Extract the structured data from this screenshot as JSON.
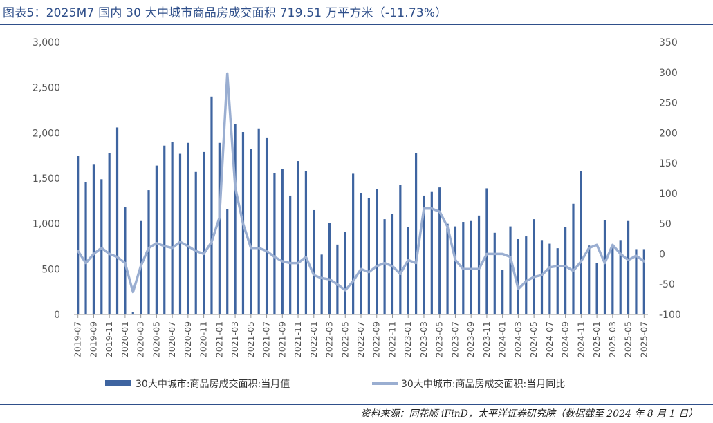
{
  "header": {
    "title": "图表5：2025M7 国内 30 大中城市商品房成交面积 719.51 万平方米（-11.73%）"
  },
  "footer": {
    "source": "资料来源：同花顺 iFinD，太平洋证券研究院（数据截至 2024 年 8 月 1 日）"
  },
  "colors": {
    "bar": "#3e64a0",
    "line": "#9aaed1",
    "rule": "#2f4f8a"
  },
  "chart_data": {
    "type": "bar",
    "categories": [
      "2019-07",
      "2019-08",
      "2019-09",
      "2019-10",
      "2019-11",
      "2019-12",
      "2020-01",
      "2020-02",
      "2020-03",
      "2020-04",
      "2020-05",
      "2020-06",
      "2020-07",
      "2020-08",
      "2020-09",
      "2020-10",
      "2020-11",
      "2020-12",
      "2021-01",
      "2021-02",
      "2021-03",
      "2021-04",
      "2021-05",
      "2021-06",
      "2021-07",
      "2021-08",
      "2021-09",
      "2021-10",
      "2021-11",
      "2021-12",
      "2022-01",
      "2022-02",
      "2022-03",
      "2022-04",
      "2022-05",
      "2022-06",
      "2022-07",
      "2022-08",
      "2022-09",
      "2022-10",
      "2022-11",
      "2022-12",
      "2023-01",
      "2023-02",
      "2023-03",
      "2023-04",
      "2023-05",
      "2023-06",
      "2023-07",
      "2023-08",
      "2023-09",
      "2023-10",
      "2023-11",
      "2023-12",
      "2024-01",
      "2024-02",
      "2024-03",
      "2024-04",
      "2024-05",
      "2024-06",
      "2024-07",
      "2024-08",
      "2024-09",
      "2024-10",
      "2024-11",
      "2024-12",
      "2025-01",
      "2025-02",
      "2025-03",
      "2025-04",
      "2025-05",
      "2025-06",
      "2025-07"
    ],
    "x_tick_labels": [
      "2019-07",
      "2019-09",
      "2019-11",
      "2020-01",
      "2020-03",
      "2020-05",
      "2020-07",
      "2020-09",
      "2020-11",
      "2021-01",
      "2021-03",
      "2021-05",
      "2021-07",
      "2021-09",
      "2021-11",
      "2022-01",
      "2022-03",
      "2022-05",
      "2022-07",
      "2022-09",
      "2022-11",
      "2023-01",
      "2023-03",
      "2023-05",
      "2023-07",
      "2023-09",
      "2023-11",
      "2024-01",
      "2024-03",
      "2024-05",
      "2024-07",
      "2024-09",
      "2024-11",
      "2025-01",
      "2025-03",
      "2025-05",
      "2025-07"
    ],
    "series": [
      {
        "name": "30大中城市:商品房成交面积:当月值",
        "type": "bar",
        "axis": "left",
        "values": [
          1750,
          1460,
          1650,
          1490,
          1780,
          2060,
          1180,
          30,
          1030,
          1370,
          1640,
          1860,
          1900,
          1770,
          1890,
          1570,
          1790,
          2400,
          1890,
          1160,
          2100,
          2010,
          1820,
          2050,
          1950,
          1560,
          1600,
          1310,
          1690,
          1580,
          1150,
          660,
          1010,
          770,
          910,
          1550,
          1340,
          1280,
          1380,
          1050,
          1110,
          1430,
          960,
          1780,
          1310,
          1350,
          1400,
          1000,
          970,
          1020,
          1030,
          1090,
          1390,
          900,
          490,
          970,
          830,
          860,
          1050,
          820,
          780,
          730,
          960,
          1220,
          1580,
          760,
          570,
          1040,
          740,
          820,
          1030,
          720,
          720
        ],
        "unit": ""
      },
      {
        "name": "30大中城市:商品房成交面积:当月同比",
        "type": "line",
        "axis": "right",
        "values": [
          5,
          -15,
          0,
          10,
          0,
          -5,
          -15,
          -63,
          -20,
          10,
          18,
          13,
          10,
          20,
          13,
          5,
          0,
          20,
          60,
          298,
          110,
          50,
          10,
          10,
          5,
          -5,
          -12,
          -15,
          -15,
          -5,
          -35,
          -40,
          -42,
          -50,
          -60,
          -45,
          -25,
          -30,
          -20,
          -15,
          -20,
          -33,
          -10,
          -15,
          75,
          75,
          70,
          45,
          -10,
          -25,
          -25,
          -25,
          0,
          0,
          0,
          -5,
          -58,
          -45,
          -38,
          -35,
          -22,
          -20,
          -20,
          -28,
          -12,
          10,
          15,
          -15,
          15,
          0,
          -10,
          -3,
          -12
        ]
      }
    ],
    "y_left": {
      "min": 0,
      "max": 3000,
      "ticks": [
        "0",
        "500",
        "1,000",
        "1,500",
        "2,000",
        "2,500",
        "3,000"
      ]
    },
    "y_right": {
      "min": -100,
      "max": 350,
      "ticks": [
        "-100",
        "-50",
        "0",
        "50",
        "100",
        "150",
        "200",
        "250",
        "300",
        "350"
      ]
    },
    "legend": {
      "position": "bottom",
      "bar_label": "30大中城市:商品房成交面积:当月值",
      "line_label": "30大中城市:商品房成交面积:当月同比"
    },
    "grid": false
  }
}
